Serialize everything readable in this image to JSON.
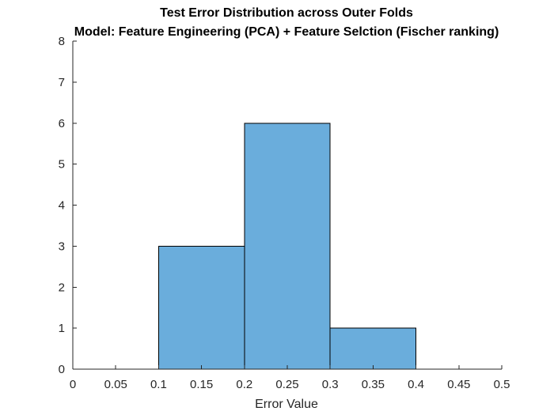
{
  "chart_data": {
    "type": "bar",
    "subtype": "histogram",
    "title": "Test Error Distribution across Outer Folds",
    "subtitle": "Model: Feature Engineering (PCA) + Feature Selction (Fischer ranking)",
    "xlabel": "Error Value",
    "ylabel": "",
    "xlim": [
      0,
      0.5
    ],
    "ylim": [
      0,
      8
    ],
    "x_ticks": [
      "0",
      "0.05",
      "0.1",
      "0.15",
      "0.2",
      "0.25",
      "0.3",
      "0.35",
      "0.4",
      "0.45",
      "0.5"
    ],
    "y_ticks": [
      "0",
      "1",
      "2",
      "3",
      "4",
      "5",
      "6",
      "7",
      "8"
    ],
    "bins": [
      {
        "from": 0.1,
        "to": 0.2,
        "count": 3
      },
      {
        "from": 0.2,
        "to": 0.3,
        "count": 6
      },
      {
        "from": 0.3,
        "to": 0.4,
        "count": 1
      }
    ],
    "bar_color": "#6aaddc",
    "edge_color": "#000000",
    "grid": false,
    "legend": "none"
  }
}
